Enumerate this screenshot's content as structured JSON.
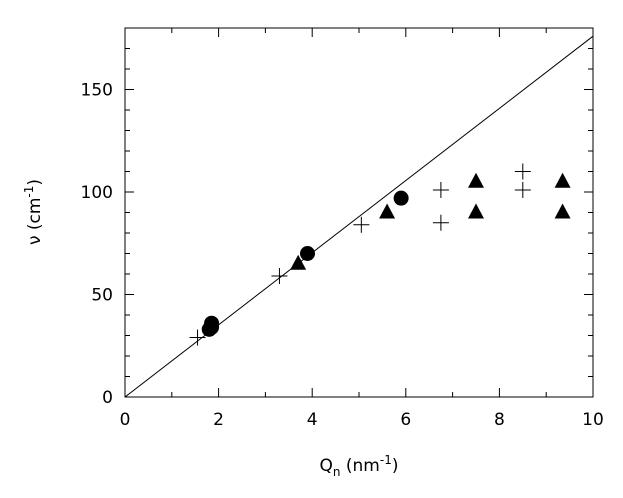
{
  "chart_data": {
    "type": "scatter",
    "title": "",
    "xlabel": {
      "base": "Q",
      "sub": "n",
      "unit_prefix": " (nm",
      "sup": "-1",
      "unit_suffix": ")"
    },
    "ylabel": {
      "base": "ν (cm",
      "sup": "-1",
      "suffix": ")"
    },
    "xlim": [
      0,
      10
    ],
    "ylim": [
      0,
      180
    ],
    "xticks": [
      0,
      2,
      4,
      6,
      8,
      10
    ],
    "yticks": [
      0,
      50,
      100,
      150
    ],
    "grid": false,
    "legend": "none",
    "line": {
      "x": [
        0,
        10
      ],
      "y": [
        0,
        176
      ]
    },
    "series": [
      {
        "marker": "circle",
        "color": "#000000",
        "points": [
          [
            1.8,
            33
          ],
          [
            1.85,
            34
          ],
          [
            1.85,
            36
          ],
          [
            3.9,
            70
          ],
          [
            5.9,
            97
          ]
        ]
      },
      {
        "marker": "triangle",
        "color": "#000000",
        "points": [
          [
            3.7,
            65
          ],
          [
            5.6,
            90
          ],
          [
            7.5,
            105
          ],
          [
            7.5,
            90
          ],
          [
            9.35,
            105
          ],
          [
            9.35,
            90
          ]
        ]
      },
      {
        "marker": "plus",
        "color": "#000000",
        "points": [
          [
            1.55,
            29
          ],
          [
            3.3,
            59
          ],
          [
            5.05,
            84
          ],
          [
            6.75,
            85
          ],
          [
            6.75,
            101
          ],
          [
            8.5,
            101
          ],
          [
            8.5,
            110
          ]
        ]
      }
    ]
  }
}
